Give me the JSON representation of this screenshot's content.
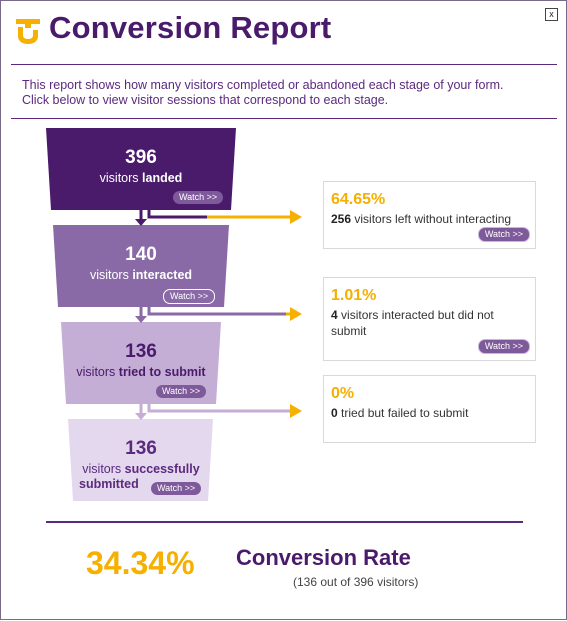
{
  "window": {
    "close_label": "x"
  },
  "header": {
    "title": "Conversion Report",
    "logo_icon": "formstack-logo-icon"
  },
  "intro": {
    "line1": "This report shows how many visitors completed or abandoned each stage of your form.",
    "line2": "Click below to view visitor sessions that correspond to each stage."
  },
  "funnel": {
    "stages": [
      {
        "count": "396",
        "label_prefix": "visitors ",
        "label_bold": "landed",
        "watch": "Watch  >>"
      },
      {
        "count": "140",
        "label_prefix": "visitors ",
        "label_bold": "interacted",
        "watch": "Watch  >>"
      },
      {
        "count": "136",
        "label_prefix": "visitors ",
        "label_bold": "tried to submit",
        "watch": "Watch  >>"
      },
      {
        "count": "136",
        "label_prefix": "visitors ",
        "label_bold": "successfully",
        "label_bold2": "submitted",
        "watch": "Watch  >>"
      }
    ],
    "dropoffs": [
      {
        "percent": "64.65%",
        "count": "256",
        "text": " visitors left without interacting",
        "watch": "Watch  >>"
      },
      {
        "percent": "1.01%",
        "count": "4",
        "text": " visitors interacted but did not submit",
        "watch": "Watch  >>"
      },
      {
        "percent": "0%",
        "count": "0",
        "text": " tried but failed to submit"
      }
    ]
  },
  "summary": {
    "rate": "34.34%",
    "title": "Conversion Rate",
    "detail": "(136 out of 396 visitors)"
  },
  "colors": {
    "stage1": "#4a1a6b",
    "stage2": "#8a6aa6",
    "stage3": "#c4aed6",
    "stage4": "#e4d8ee",
    "accent": "#f5b000",
    "title": "#4a1a6b"
  }
}
